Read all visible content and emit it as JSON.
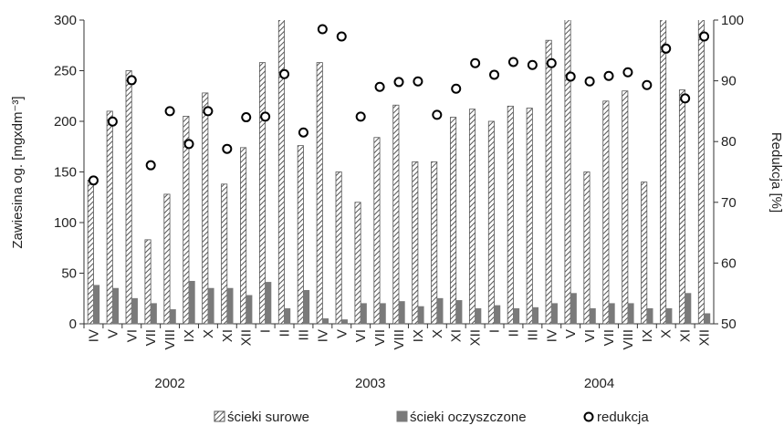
{
  "chart_data": {
    "type": "bar",
    "ylabel": "Zawiesina og. [mgxdm⁻³]",
    "y2label": "Redukcja [%]",
    "groups": [
      {
        "label": "2002",
        "months": [
          "IV",
          "V",
          "VI",
          "VII",
          "VIII",
          "IX",
          "X",
          "XI",
          "XII"
        ]
      },
      {
        "label": "2003",
        "months": [
          "I",
          "II",
          "III",
          "IV",
          "V",
          "VI",
          "VII",
          "VIII",
          "IX",
          "X",
          "XI",
          "XII"
        ]
      },
      {
        "label": "2004",
        "months": [
          "I",
          "II",
          "III",
          "IV",
          "V",
          "VI",
          "VII",
          "VIII",
          "IX",
          "X",
          "XI",
          "XII"
        ]
      }
    ],
    "ylim": [
      0,
      300
    ],
    "yticks": [
      0,
      50,
      100,
      150,
      200,
      250,
      300
    ],
    "y2lim": [
      50,
      100
    ],
    "y2ticks": [
      50,
      60,
      70,
      80,
      90,
      100
    ],
    "series": [
      {
        "name": "ścieki surowe",
        "color": "#555555",
        "kind": "hatched",
        "values": [
          142,
          210,
          250,
          83,
          128,
          205,
          228,
          138,
          174,
          258,
          310,
          176,
          258,
          150,
          120,
          184,
          216,
          160,
          160,
          204,
          212,
          200,
          215,
          213,
          280,
          310,
          150,
          220,
          230,
          140,
          310,
          231,
          310
        ]
      },
      {
        "name": "ścieki oczyszczone",
        "color": "#7a7a7a",
        "kind": "solid",
        "values": [
          38,
          35,
          25,
          20,
          14,
          42,
          35,
          35,
          28,
          41,
          15,
          33,
          5,
          4,
          20,
          20,
          22,
          17,
          25,
          23,
          15,
          18,
          15,
          16,
          20,
          30,
          15,
          20,
          20,
          15,
          15,
          30,
          10
        ]
      },
      {
        "name": "redukcja",
        "color": "#000000",
        "kind": "marker",
        "axis": "y2",
        "values": [
          73.6,
          83.3,
          90.1,
          76.1,
          85,
          79.6,
          85,
          78.8,
          84,
          84.1,
          91.1,
          81.5,
          98.5,
          97.3,
          84.1,
          89,
          89.8,
          89.9,
          84.4,
          88.7,
          92.9,
          91,
          93.1,
          92.6,
          92.9,
          90.7,
          89.9,
          90.8,
          91.4,
          89.3,
          95.3,
          87.1,
          97.3
        ]
      }
    ]
  }
}
